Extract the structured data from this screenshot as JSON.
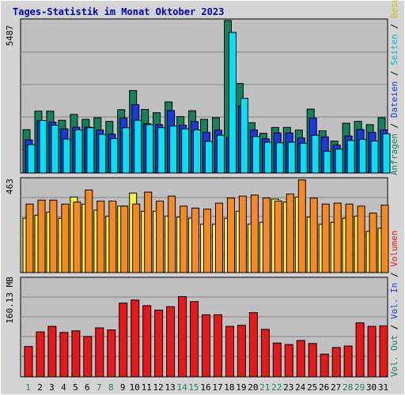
{
  "title": "Tages-Statistik im Monat Oktober 2023",
  "colors": {
    "background": "#d4d4d4",
    "panel": "#c0c0c0",
    "title": "#0000c0",
    "grid": "#808080",
    "anfragen": "#148060",
    "dateien": "#1838e0",
    "seiten": "#00e0f8",
    "besuche": "#f8f040",
    "rechner": "#f88820",
    "volumen": "#e81818",
    "weekday_label": "#000000",
    "weekend_label": "#208060"
  },
  "chart_data": [
    {
      "type": "bar",
      "panel": "requests",
      "ylabel": "5487",
      "ylim": [
        0,
        5487
      ],
      "categories": [
        "1",
        "2",
        "3",
        "4",
        "5",
        "6",
        "7",
        "8",
        "9",
        "10",
        "11",
        "12",
        "13",
        "14",
        "15",
        "16",
        "17",
        "18",
        "19",
        "20",
        "21",
        "22",
        "23",
        "24",
        "25",
        "26",
        "27",
        "28",
        "29",
        "30",
        "31"
      ],
      "weekend_days": [
        "1",
        "7",
        "8",
        "14",
        "15",
        "21",
        "22",
        "28",
        "29"
      ],
      "legend": {
        "placement": "right",
        "entries": [
          "Anfragen",
          "Dateien",
          "Seiten"
        ]
      },
      "series": [
        {
          "name": "Anfragen",
          "values": [
            1560,
            2230,
            2230,
            1900,
            2110,
            1930,
            1990,
            1860,
            2280,
            2970,
            2290,
            2170,
            2560,
            2030,
            2240,
            1930,
            1990,
            5487,
            3220,
            1810,
            1430,
            1640,
            1640,
            1550,
            2300,
            1520,
            1150,
            1790,
            1860,
            1740,
            1990
          ]
        },
        {
          "name": "Dateien",
          "values": [
            1190,
            1880,
            1830,
            1590,
            1650,
            1650,
            1550,
            1400,
            1980,
            2460,
            1770,
            1740,
            2250,
            1720,
            1850,
            1460,
            1540,
            1270,
            2410,
            1550,
            1230,
            1440,
            1440,
            1260,
            1980,
            1300,
            1010,
            1330,
            1560,
            1460,
            1550
          ]
        },
        {
          "name": "Seiten",
          "values": [
            1020,
            1890,
            1720,
            1220,
            1550,
            1630,
            1390,
            1240,
            1630,
            1900,
            1740,
            1630,
            1690,
            1590,
            1550,
            1140,
            1360,
            5060,
            2690,
            1310,
            1110,
            1090,
            1110,
            1070,
            1360,
            780,
            860,
            1170,
            1210,
            1150,
            1410
          ]
        }
      ]
    },
    {
      "type": "bar",
      "panel": "visits",
      "ylabel": "463",
      "ylim": [
        0,
        463
      ],
      "categories": [
        "1",
        "2",
        "3",
        "4",
        "5",
        "6",
        "7",
        "8",
        "9",
        "10",
        "11",
        "12",
        "13",
        "14",
        "15",
        "16",
        "17",
        "18",
        "19",
        "20",
        "21",
        "22",
        "23",
        "24",
        "25",
        "26",
        "27",
        "28",
        "29",
        "30",
        "31"
      ],
      "legend": {
        "placement": "right",
        "entries": [
          "Besuche",
          "Rechner"
        ]
      },
      "series": [
        {
          "name": "Besuche",
          "values": [
            270,
            285,
            300,
            270,
            375,
            340,
            310,
            280,
            330,
            395,
            305,
            305,
            280,
            275,
            270,
            240,
            240,
            270,
            305,
            240,
            250,
            365,
            350,
            375,
            275,
            240,
            250,
            270,
            280,
            205,
            220
          ]
        },
        {
          "name": "Rechner",
          "values": [
            340,
            360,
            360,
            340,
            350,
            410,
            355,
            355,
            330,
            340,
            400,
            355,
            380,
            330,
            320,
            315,
            345,
            370,
            380,
            385,
            370,
            355,
            390,
            460,
            370,
            340,
            345,
            340,
            330,
            295,
            335
          ]
        }
      ]
    },
    {
      "type": "bar",
      "panel": "volume",
      "ylabel": "160.13 MB",
      "ylim": [
        0,
        194
      ],
      "categories": [
        "1",
        "2",
        "3",
        "4",
        "5",
        "6",
        "7",
        "8",
        "9",
        "10",
        "11",
        "12",
        "13",
        "14",
        "15",
        "16",
        "17",
        "18",
        "19",
        "20",
        "21",
        "22",
        "23",
        "24",
        "25",
        "26",
        "27",
        "28",
        "29",
        "30",
        "31"
      ],
      "legend": {
        "placement": "right",
        "entries": [
          "Volumen",
          "Vol. In",
          "Vol. Out"
        ]
      },
      "series": [
        {
          "name": "Volumen",
          "values": [
            60,
            89,
            100,
            88,
            91,
            80,
            97,
            93,
            146,
            152,
            141,
            132,
            139,
            159,
            149,
            123,
            123,
            100,
            102,
            127,
            94,
            67,
            64,
            72,
            66,
            45,
            58,
            61,
            107,
            100,
            101
          ]
        }
      ]
    }
  ],
  "legend_vertical": {
    "top": [
      {
        "text": "Anfragen",
        "color": "#148060"
      },
      {
        "text": " / ",
        "color": "#000000"
      },
      {
        "text": "Dateien",
        "color": "#1838e0"
      },
      {
        "text": " / ",
        "color": "#000000"
      },
      {
        "text": "Seiten",
        "color": "#00b8d0"
      },
      {
        "text": " / ",
        "color": "#000000"
      },
      {
        "text": "Besuche",
        "color": "#d0c000"
      },
      {
        "text": " / ",
        "color": "#000000"
      },
      {
        "text": "Rechner",
        "color": "#f07000"
      }
    ],
    "bottom": [
      {
        "text": "Vol. Out",
        "color": "#148060"
      },
      {
        "text": " / ",
        "color": "#000000"
      },
      {
        "text": "Vol. In",
        "color": "#1838e0"
      },
      {
        "text": " / ",
        "color": "#000000"
      },
      {
        "text": "Volumen",
        "color": "#e81818"
      }
    ]
  }
}
